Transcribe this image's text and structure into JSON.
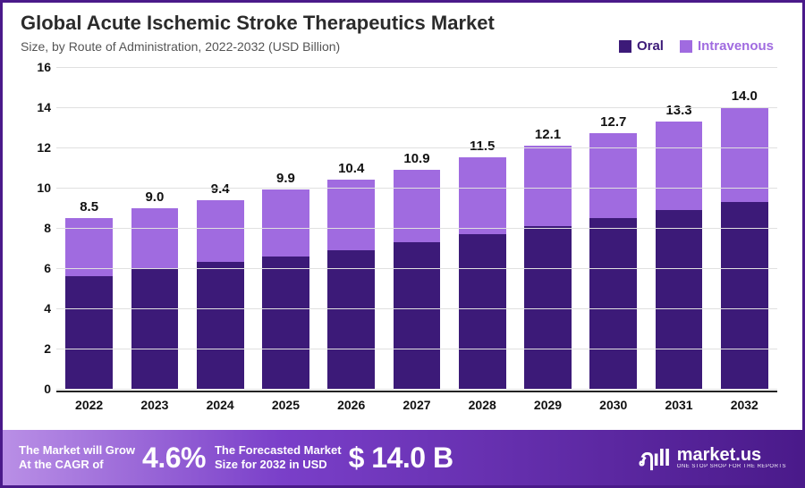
{
  "title": "Global Acute Ischemic Stroke Therapeutics Market",
  "subtitle": "Size, by Route of Administration, 2022-2032 (USD Billion)",
  "legend": [
    {
      "label": "Oral",
      "color": "#3c1a78"
    },
    {
      "label": "Intravenous",
      "color": "#a06be0"
    }
  ],
  "chart": {
    "type": "stacked-bar",
    "y": {
      "min": 0,
      "max": 16,
      "step": 2
    },
    "categories": [
      "2022",
      "2023",
      "2024",
      "2025",
      "2026",
      "2027",
      "2028",
      "2029",
      "2030",
      "2031",
      "2032"
    ],
    "series": [
      {
        "name": "Oral",
        "color": "#3c1a78",
        "values": [
          5.6,
          6.0,
          6.3,
          6.6,
          6.9,
          7.3,
          7.7,
          8.1,
          8.5,
          8.9,
          9.3
        ]
      },
      {
        "name": "Intravenous",
        "color": "#a06be0",
        "values": [
          2.9,
          3.0,
          3.1,
          3.3,
          3.5,
          3.6,
          3.8,
          4.0,
          4.2,
          4.4,
          4.7
        ]
      }
    ],
    "totals": [
      "8.5",
      "9.0",
      "9.4",
      "9.9",
      "10.4",
      "10.9",
      "11.5",
      "12.1",
      "12.7",
      "13.3",
      "14.0"
    ],
    "grid_color": "#e0e0e0",
    "axis_color": "#222222",
    "background_color": "#ffffff",
    "label_fontsize": 15,
    "tick_fontsize": 14,
    "bar_width_ratio": 0.72
  },
  "footer": {
    "cagr_label_line1": "The Market will Grow",
    "cagr_label_line2": "At the CAGR of",
    "cagr_value": "4.6%",
    "forecast_label_line1": "The Forecasted Market",
    "forecast_label_line2": "Size for 2032 in USD",
    "forecast_value": "$ 14.0 B",
    "logo_mark": "ฦıll",
    "logo_text": "market.us",
    "logo_tagline": "ONE STOP SHOP FOR THE REPORTS",
    "gradient_from": "#b98fe6",
    "gradient_mid": "#7a3fc9",
    "gradient_to": "#4a1a8a"
  },
  "border_color": "#4a1a8a"
}
